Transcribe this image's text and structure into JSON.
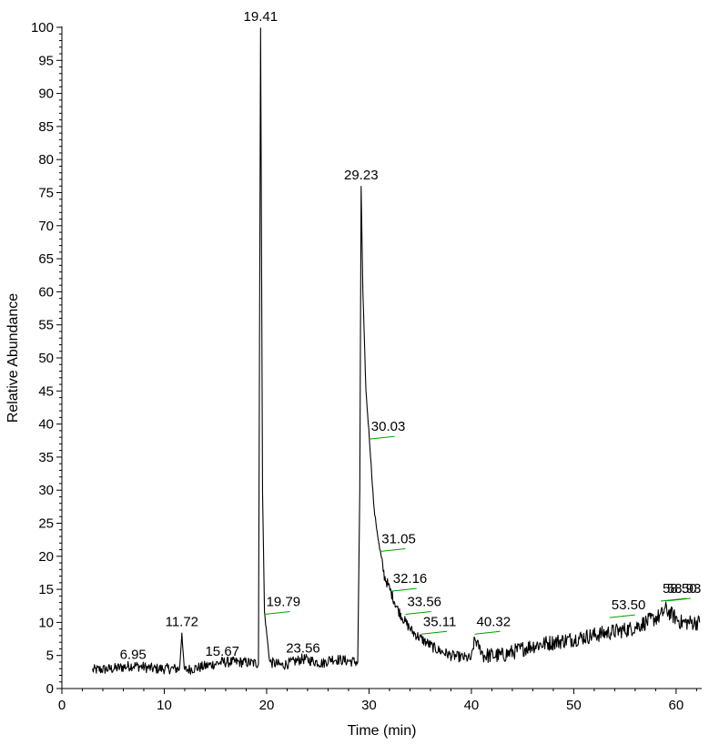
{
  "chart_data": {
    "type": "line",
    "title": "",
    "xlabel": "Time (min)",
    "ylabel": "Relative Abundance",
    "xlim": [
      0,
      62.5
    ],
    "ylim": [
      0,
      100
    ],
    "x_ticks": [
      "0",
      "10",
      "20",
      "30",
      "40",
      "50",
      "60"
    ],
    "y_ticks": [
      "0",
      "5",
      "10",
      "15",
      "20",
      "25",
      "30",
      "35",
      "40",
      "45",
      "50",
      "55",
      "60",
      "65",
      "70",
      "75",
      "80",
      "85",
      "90",
      "95",
      "100"
    ],
    "grid": false,
    "legend": "none",
    "line_color": "#000000",
    "baseline_marker_color": "#00a000",
    "trace": {
      "x": [
        3.0,
        5.0,
        6.95,
        9.0,
        11.5,
        11.72,
        11.95,
        13.5,
        15.67,
        17.5,
        19.2,
        19.41,
        19.6,
        19.79,
        20.3,
        21.5,
        23.56,
        25.5,
        26.3,
        28.9,
        29.1,
        29.23,
        29.4,
        29.7,
        30.03,
        30.5,
        31.05,
        31.5,
        32.16,
        32.8,
        33.56,
        34.3,
        35.11,
        36.5,
        38.0,
        40.0,
        40.32,
        41.2,
        43.0,
        46.0,
        50.0,
        53.5,
        55.5,
        58.5,
        58.93,
        60.5,
        62.3
      ],
      "y": [
        2.8,
        3.0,
        3.5,
        3.0,
        3.0,
        8.5,
        2.8,
        3.2,
        4.0,
        4.0,
        3.8,
        100.0,
        30.0,
        11.5,
        4.0,
        3.5,
        4.5,
        3.8,
        4.5,
        4.0,
        30.0,
        76.0,
        60.0,
        45.0,
        38.0,
        27.0,
        21.0,
        17.0,
        14.5,
        12.0,
        10.0,
        8.5,
        7.5,
        6.0,
        5.0,
        4.5,
        7.5,
        5.0,
        5.0,
        6.5,
        7.5,
        8.5,
        9.0,
        11.0,
        12.0,
        10.0,
        10.0
      ]
    },
    "peak_labels": [
      {
        "text": "6.95",
        "x": 6.95,
        "y": 3.5
      },
      {
        "text": "11.72",
        "x": 11.72,
        "y": 8.5
      },
      {
        "text": "15.67",
        "x": 15.67,
        "y": 4.0
      },
      {
        "text": "19.41",
        "x": 19.41,
        "y": 100.0
      },
      {
        "text": "19.79",
        "x": 19.79,
        "y": 11.5
      },
      {
        "text": "23.56",
        "x": 23.56,
        "y": 4.5
      },
      {
        "text": "29.23",
        "x": 29.23,
        "y": 76.0
      },
      {
        "text": "30.03",
        "x": 30.03,
        "y": 38.0
      },
      {
        "text": "31.05",
        "x": 31.05,
        "y": 21.0
      },
      {
        "text": "32.16",
        "x": 32.16,
        "y": 15.0
      },
      {
        "text": "33.56",
        "x": 33.56,
        "y": 11.5
      },
      {
        "text": "35.11",
        "x": 35.11,
        "y": 8.5
      },
      {
        "text": "40.32",
        "x": 40.32,
        "y": 8.5
      },
      {
        "text": "53.50",
        "x": 53.5,
        "y": 11.0
      },
      {
        "text": "58.50",
        "x": 58.5,
        "y": 13.5
      },
      {
        "text": "58.93",
        "x": 58.93,
        "y": 13.5
      }
    ]
  }
}
